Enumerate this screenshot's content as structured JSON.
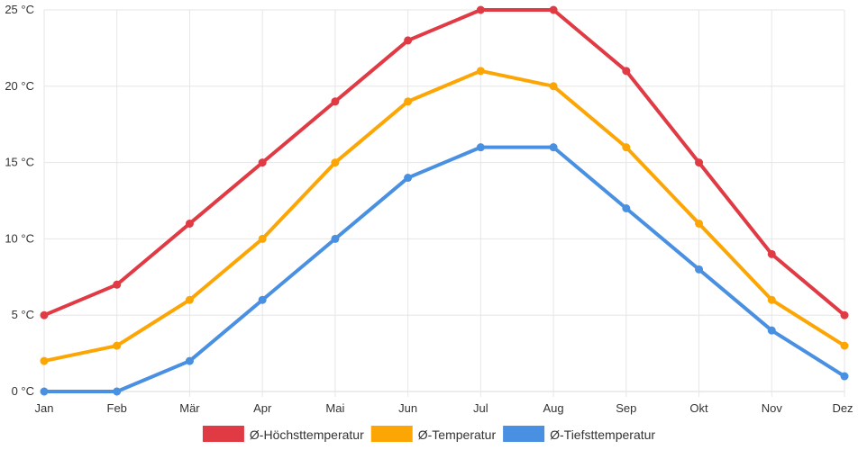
{
  "chart_data": {
    "type": "line",
    "categories": [
      "Jan",
      "Feb",
      "Mär",
      "Apr",
      "Mai",
      "Jun",
      "Jul",
      "Aug",
      "Sep",
      "Okt",
      "Nov",
      "Dez"
    ],
    "y_ticks": [
      "0 °C",
      "5 °C",
      "10 °C",
      "15 °C",
      "20 °C",
      "25 °C"
    ],
    "ylim": [
      0,
      25
    ],
    "grid": true,
    "legend_position": "bottom",
    "series": [
      {
        "name": "Ø-Höchsttemperatur",
        "color": "#e03a44",
        "values": [
          5,
          7,
          11,
          15,
          19,
          23,
          25,
          25,
          21,
          15,
          9,
          5
        ]
      },
      {
        "name": "Ø-Temperatur",
        "color": "#fca606",
        "values": [
          2,
          3,
          6,
          10,
          15,
          19,
          21,
          20,
          16,
          11,
          6,
          3
        ]
      },
      {
        "name": "Ø-Tiefsttemperatur",
        "color": "#4a90e2",
        "values": [
          0,
          0,
          2,
          6,
          10,
          14,
          16,
          16,
          12,
          8,
          4,
          1
        ]
      }
    ]
  }
}
